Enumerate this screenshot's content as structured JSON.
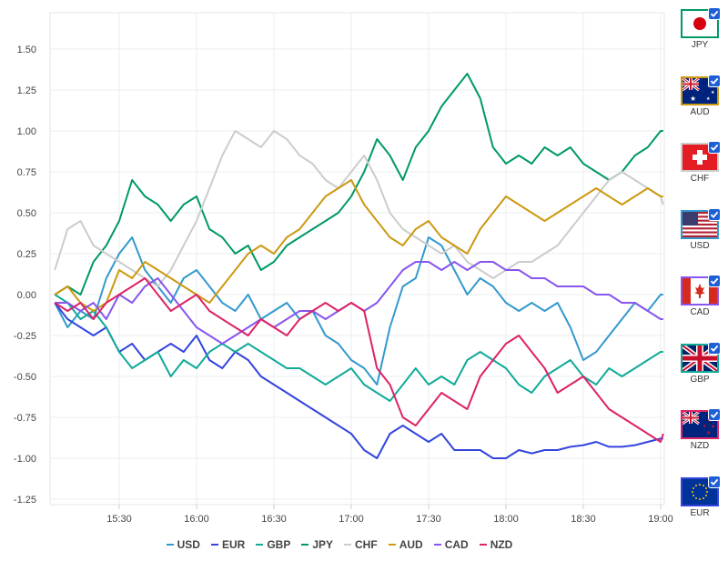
{
  "chart_data": {
    "type": "line",
    "x": [
      "15:05",
      "15:10",
      "15:15",
      "15:20",
      "15:25",
      "15:30",
      "15:35",
      "15:40",
      "15:45",
      "15:50",
      "15:55",
      "16:00",
      "16:05",
      "16:10",
      "16:15",
      "16:20",
      "16:25",
      "16:30",
      "16:35",
      "16:40",
      "16:45",
      "16:50",
      "16:55",
      "17:00",
      "17:05",
      "17:10",
      "17:15",
      "17:20",
      "17:25",
      "17:30",
      "17:35",
      "17:40",
      "17:45",
      "17:50",
      "17:55",
      "18:00",
      "18:05",
      "18:10",
      "18:15",
      "18:20",
      "18:25",
      "18:30",
      "18:35",
      "18:40",
      "18:45",
      "18:50",
      "18:55",
      "19:00",
      "19:01"
    ],
    "x_ticks": [
      "15:30",
      "16:00",
      "16:30",
      "17:00",
      "17:30",
      "18:00",
      "18:30",
      "19:00"
    ],
    "ylim": [
      -1.25,
      1.6
    ],
    "y_ticks": [
      "1.50",
      "1.25",
      "1.00",
      "0.75",
      "0.50",
      "0.25",
      "0.00",
      "-0.25",
      "-0.50",
      "-0.75",
      "-1.00",
      "-1.25"
    ],
    "grid": true,
    "legend_position": "bottom",
    "series": [
      {
        "name": "USD",
        "color": "#3399cc",
        "values": [
          -0.05,
          -0.2,
          -0.1,
          -0.15,
          0.1,
          0.25,
          0.35,
          0.15,
          0.05,
          -0.05,
          0.1,
          0.15,
          0.05,
          -0.05,
          -0.1,
          0.0,
          -0.15,
          -0.1,
          -0.05,
          -0.15,
          -0.1,
          -0.25,
          -0.3,
          -0.4,
          -0.45,
          -0.55,
          -0.2,
          0.05,
          0.1,
          0.35,
          0.3,
          0.15,
          0.0,
          0.1,
          0.05,
          -0.05,
          -0.1,
          -0.05,
          -0.1,
          -0.05,
          -0.2,
          -0.4,
          -0.35,
          -0.25,
          -0.15,
          -0.05,
          -0.1,
          0.0,
          0.0
        ]
      },
      {
        "name": "EUR",
        "color": "#3344dd",
        "values": [
          -0.05,
          -0.15,
          -0.2,
          -0.25,
          -0.2,
          -0.35,
          -0.3,
          -0.4,
          -0.35,
          -0.3,
          -0.35,
          -0.25,
          -0.4,
          -0.45,
          -0.35,
          -0.4,
          -0.5,
          -0.55,
          -0.6,
          -0.65,
          -0.7,
          -0.75,
          -0.8,
          -0.85,
          -0.95,
          -1.0,
          -0.85,
          -0.8,
          -0.85,
          -0.9,
          -0.85,
          -0.95,
          -0.95,
          -0.95,
          -1.0,
          -1.0,
          -0.95,
          -0.97,
          -0.95,
          -0.95,
          -0.93,
          -0.92,
          -0.9,
          -0.93,
          -0.93,
          -0.92,
          -0.9,
          -0.88,
          -0.88
        ]
      },
      {
        "name": "GBP",
        "color": "#11aa99",
        "values": [
          0.0,
          -0.05,
          -0.15,
          -0.1,
          -0.2,
          -0.35,
          -0.45,
          -0.4,
          -0.35,
          -0.5,
          -0.4,
          -0.45,
          -0.35,
          -0.3,
          -0.35,
          -0.3,
          -0.35,
          -0.4,
          -0.45,
          -0.45,
          -0.5,
          -0.55,
          -0.5,
          -0.45,
          -0.55,
          -0.6,
          -0.65,
          -0.55,
          -0.45,
          -0.55,
          -0.5,
          -0.55,
          -0.4,
          -0.35,
          -0.4,
          -0.45,
          -0.55,
          -0.6,
          -0.5,
          -0.45,
          -0.4,
          -0.5,
          -0.55,
          -0.45,
          -0.5,
          -0.45,
          -0.4,
          -0.35,
          -0.35
        ]
      },
      {
        "name": "JPY",
        "color": "#009966",
        "values": [
          0.0,
          0.05,
          0.0,
          0.2,
          0.3,
          0.45,
          0.7,
          0.6,
          0.55,
          0.45,
          0.55,
          0.6,
          0.4,
          0.35,
          0.25,
          0.3,
          0.15,
          0.2,
          0.3,
          0.35,
          0.4,
          0.45,
          0.5,
          0.6,
          0.75,
          0.95,
          0.85,
          0.7,
          0.9,
          1.0,
          1.15,
          1.25,
          1.35,
          1.2,
          0.9,
          0.8,
          0.85,
          0.8,
          0.9,
          0.85,
          0.9,
          0.8,
          0.75,
          0.7,
          0.75,
          0.85,
          0.9,
          1.0,
          1.0
        ]
      },
      {
        "name": "CHF",
        "color": "#cccccc",
        "values": [
          0.15,
          0.4,
          0.45,
          0.3,
          0.25,
          0.2,
          0.15,
          0.1,
          0.05,
          0.15,
          0.3,
          0.45,
          0.65,
          0.85,
          1.0,
          0.95,
          0.9,
          1.0,
          0.95,
          0.85,
          0.8,
          0.7,
          0.65,
          0.75,
          0.85,
          0.7,
          0.5,
          0.4,
          0.35,
          0.3,
          0.25,
          0.3,
          0.2,
          0.15,
          0.1,
          0.15,
          0.2,
          0.2,
          0.25,
          0.3,
          0.4,
          0.5,
          0.6,
          0.7,
          0.75,
          0.7,
          0.65,
          0.6,
          0.55
        ]
      },
      {
        "name": "AUD",
        "color": "#cc9911",
        "values": [
          0.0,
          0.05,
          -0.05,
          -0.1,
          -0.05,
          0.15,
          0.1,
          0.2,
          0.15,
          0.1,
          0.05,
          0.0,
          -0.05,
          0.05,
          0.15,
          0.25,
          0.3,
          0.25,
          0.35,
          0.4,
          0.5,
          0.6,
          0.65,
          0.7,
          0.55,
          0.45,
          0.35,
          0.3,
          0.4,
          0.45,
          0.35,
          0.3,
          0.25,
          0.4,
          0.5,
          0.6,
          0.55,
          0.5,
          0.45,
          0.5,
          0.55,
          0.6,
          0.65,
          0.6,
          0.55,
          0.6,
          0.65,
          0.6,
          0.6
        ]
      },
      {
        "name": "CAD",
        "color": "#8855ee",
        "values": [
          -0.05,
          -0.05,
          -0.1,
          -0.05,
          -0.15,
          0.0,
          -0.05,
          0.05,
          0.1,
          0.0,
          -0.1,
          -0.2,
          -0.25,
          -0.3,
          -0.25,
          -0.2,
          -0.15,
          -0.2,
          -0.15,
          -0.1,
          -0.1,
          -0.15,
          -0.1,
          -0.05,
          -0.1,
          -0.05,
          0.05,
          0.15,
          0.2,
          0.2,
          0.15,
          0.2,
          0.15,
          0.2,
          0.2,
          0.15,
          0.15,
          0.1,
          0.1,
          0.05,
          0.05,
          0.05,
          0.0,
          0.0,
          -0.05,
          -0.05,
          -0.1,
          -0.15,
          -0.15
        ]
      },
      {
        "name": "NZD",
        "color": "#dd2266",
        "values": [
          -0.05,
          -0.1,
          -0.05,
          -0.15,
          -0.05,
          0.0,
          0.05,
          0.1,
          0.0,
          -0.1,
          -0.05,
          0.0,
          -0.1,
          -0.15,
          -0.2,
          -0.25,
          -0.15,
          -0.2,
          -0.25,
          -0.15,
          -0.1,
          -0.05,
          -0.1,
          -0.05,
          -0.1,
          -0.45,
          -0.55,
          -0.75,
          -0.8,
          -0.7,
          -0.6,
          -0.65,
          -0.7,
          -0.5,
          -0.4,
          -0.3,
          -0.25,
          -0.35,
          -0.45,
          -0.6,
          -0.55,
          -0.5,
          -0.6,
          -0.7,
          -0.75,
          -0.8,
          -0.85,
          -0.9,
          -0.85
        ]
      }
    ]
  },
  "legend": [
    {
      "label": "USD",
      "color": "#3399cc"
    },
    {
      "label": "EUR",
      "color": "#3344dd"
    },
    {
      "label": "GBP",
      "color": "#11aa99"
    },
    {
      "label": "JPY",
      "color": "#009966"
    },
    {
      "label": "CHF",
      "color": "#cccccc"
    },
    {
      "label": "AUD",
      "color": "#cc9911"
    },
    {
      "label": "CAD",
      "color": "#8855ee"
    },
    {
      "label": "NZD",
      "color": "#dd2266"
    }
  ],
  "flags": [
    {
      "code": "JPY",
      "border": "#009966",
      "checked": true
    },
    {
      "code": "AUD",
      "border": "#cc9911",
      "checked": true
    },
    {
      "code": "CHF",
      "border": "#cccccc",
      "checked": true
    },
    {
      "code": "USD",
      "border": "#3399cc",
      "checked": true
    },
    {
      "code": "CAD",
      "border": "#8855ee",
      "checked": true
    },
    {
      "code": "GBP",
      "border": "#11aa99",
      "checked": true
    },
    {
      "code": "NZD",
      "border": "#dd2266",
      "checked": true
    },
    {
      "code": "EUR",
      "border": "#3344dd",
      "checked": true
    }
  ]
}
